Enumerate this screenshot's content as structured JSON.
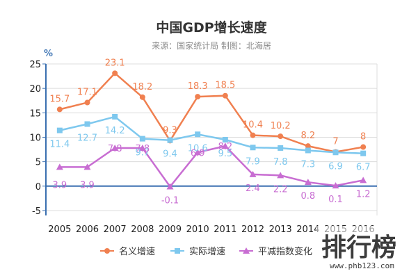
{
  "chart_data": {
    "type": "line",
    "title": "中国GDP增长速度",
    "subtitle": "来源：国家统计局 制图：北海居",
    "ylabel": "%",
    "xlabel": "",
    "ylim": [
      -6,
      25
    ],
    "yticks": [
      -5,
      0,
      5,
      10,
      15,
      20,
      25
    ],
    "grid": true,
    "legend_position": "bottom",
    "categories": [
      "2005",
      "2006",
      "2007",
      "2008",
      "2009",
      "2010",
      "2011",
      "2012",
      "2013",
      "2014",
      "2015",
      "2016"
    ],
    "series": [
      {
        "name": "名义增速",
        "color": "#f08050",
        "marker": "circle",
        "values": [
          15.7,
          17.1,
          23.1,
          18.2,
          9.3,
          18.3,
          18.5,
          10.4,
          10.2,
          8.2,
          7,
          8
        ]
      },
      {
        "name": "实际增速",
        "color": "#7ec8ee",
        "marker": "square",
        "values": [
          11.4,
          12.7,
          14.2,
          9.7,
          9.4,
          10.6,
          9.5,
          7.9,
          7.8,
          7.3,
          6.9,
          6.7
        ]
      },
      {
        "name": "平减指数变化",
        "color": "#c86dd2",
        "marker": "triangle",
        "values": [
          3.9,
          3.9,
          7.8,
          7.8,
          -0.1,
          6.9,
          8.2,
          2.4,
          2.2,
          0.8,
          0.1,
          1.2
        ]
      }
    ]
  },
  "watermark": {
    "text": "排行榜",
    "url": "www.phb123.com"
  }
}
